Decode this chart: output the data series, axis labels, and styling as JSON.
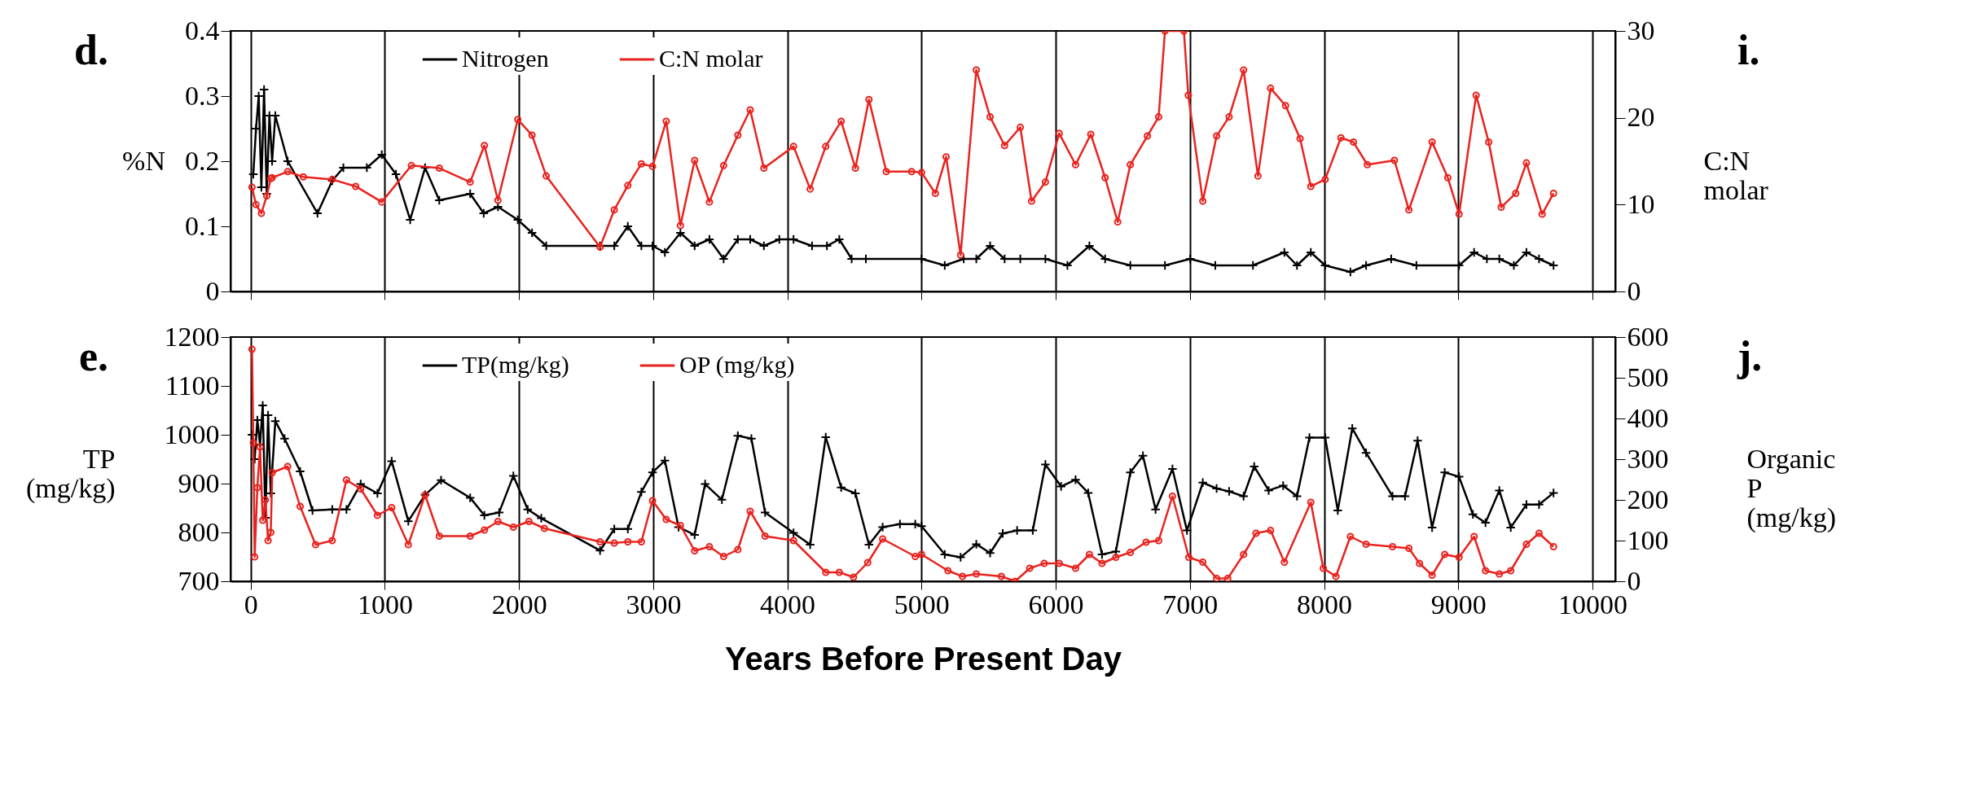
{
  "chart_data": [
    {
      "type": "line",
      "ylabel": "%N",
      "y2label": "C:N molar",
      "xlim": [
        -150,
        10170
      ],
      "xticks": [
        0,
        1000,
        2000,
        3000,
        4000,
        5000,
        6000,
        7000,
        8000,
        9000,
        10000
      ],
      "ylim": [
        0,
        0.4
      ],
      "yticks": [
        0,
        0.1,
        0.2,
        0.3,
        0.4
      ],
      "y2lim": [
        0,
        30
      ],
      "y2ticks": [
        0,
        10,
        20,
        30
      ],
      "grid": "x",
      "legend": "top",
      "tick_labels": "y",
      "annotations": [
        "d.",
        "i."
      ],
      "series": [
        {
          "name": "Nitrogen",
          "color": "#000000",
          "marker": "cross",
          "x": [
            20,
            40,
            60,
            80,
            100,
            120,
            140,
            160,
            184,
            276,
            498,
            608,
            691,
            866,
            977,
            1083,
            1189,
            1300,
            1406,
            1636,
            1737,
            1843,
            1991,
            2097,
            2203,
            2604,
            2710,
            2811,
            2912,
            2995,
            3087,
            3203,
            3309,
            3419,
            3525,
            3631,
            3723,
            3825,
            3940,
            4046,
            4184,
            4295,
            4387,
            4479,
            4585,
            5000,
            5173,
            5314,
            5408,
            5511,
            5619,
            5736,
            5923,
            6087,
            6251,
            6368,
            6556,
            6814,
            7002,
            7189,
            7470,
            7704,
            7798,
            7901,
            8008,
            8196,
            8313,
            8500,
            8688,
            9006,
            9118,
            9213,
            9306,
            9414,
            9508,
            9602,
            9710
          ],
          "values": [
            0.18,
            0.25,
            0.3,
            0.16,
            0.31,
            0.15,
            0.27,
            0.2,
            0.27,
            0.2,
            0.12,
            0.17,
            0.19,
            0.19,
            0.21,
            0.18,
            0.11,
            0.19,
            0.14,
            0.15,
            0.12,
            0.13,
            0.11,
            0.09,
            0.07,
            0.07,
            0.07,
            0.1,
            0.07,
            0.07,
            0.06,
            0.09,
            0.07,
            0.08,
            0.05,
            0.08,
            0.08,
            0.07,
            0.08,
            0.08,
            0.07,
            0.07,
            0.08,
            0.05,
            0.05,
            0.05,
            0.04,
            0.05,
            0.05,
            0.07,
            0.05,
            0.05,
            0.05,
            0.04,
            0.07,
            0.05,
            0.04,
            0.04,
            0.05,
            0.04,
            0.04,
            0.06,
            0.04,
            0.06,
            0.04,
            0.03,
            0.04,
            0.05,
            0.04,
            0.04,
            0.06,
            0.05,
            0.05,
            0.04,
            0.06,
            0.05,
            0.04
          ]
        },
        {
          "name": "C:N molar",
          "color": "#e8231f",
          "marker": "circle",
          "axis": "y2",
          "x": [
            10,
            40,
            80,
            120,
            150,
            160,
            276,
            392,
            608,
            783,
            977,
            1198,
            1406,
            1636,
            1742,
            1843,
            1991,
            2097,
            2203,
            2604,
            2710,
            2811,
            2912,
            2995,
            3097,
            3203,
            3309,
            3419,
            3525,
            3631,
            3723,
            3825,
            4046,
            4170,
            4286,
            4401,
            4507,
            4608,
            4737,
            4926,
            5000,
            5103,
            5183,
            5291,
            5408,
            5511,
            5619,
            5736,
            5820,
            5923,
            6026,
            6148,
            6261,
            6368,
            6462,
            6556,
            6683,
            6767,
            6814,
            6955,
            6988,
            7096,
            7199,
            7292,
            7400,
            7507,
            7601,
            7713,
            7821,
            7901,
            8008,
            8125,
            8219,
            8322,
            8524,
            8632,
            8805,
            8922,
            9006,
            9133,
            9227,
            9320,
            9428,
            9508,
            9625,
            9710
          ],
          "values": [
            12,
            10,
            9,
            11,
            13,
            13.1,
            13.8,
            13.2,
            12.9,
            12.1,
            10.3,
            14.5,
            14.2,
            12.6,
            16.8,
            10.5,
            19.8,
            18,
            13.3,
            5.1,
            9.4,
            12.2,
            14.7,
            14.4,
            19.6,
            7.6,
            15.1,
            10.3,
            14.5,
            18,
            20.9,
            14.2,
            16.7,
            11.8,
            16.7,
            19.6,
            14.2,
            22.1,
            13.8,
            13.8,
            13.7,
            11.3,
            15.5,
            4.2,
            25.5,
            20.1,
            16.8,
            18.9,
            10.4,
            12.6,
            18.2,
            14.6,
            18.1,
            13.1,
            8,
            14.6,
            17.9,
            20.1,
            30,
            30,
            22.6,
            10.4,
            17.9,
            20.1,
            25.5,
            13.3,
            23.4,
            21.4,
            17.6,
            12.1,
            12.9,
            17.7,
            17.2,
            14.6,
            15.1,
            9.4,
            17.2,
            13.1,
            8.9,
            22.6,
            17.2,
            9.7,
            11.3,
            14.8,
            8.9,
            11.3
          ]
        }
      ]
    },
    {
      "type": "line",
      "xlabel": "Years Before Present Day",
      "ylabel": "TP (mg/kg)",
      "y2label": "Organic P (mg/kg)",
      "xlim": [
        -150,
        10170
      ],
      "xticks": [
        0,
        1000,
        2000,
        3000,
        4000,
        5000,
        6000,
        7000,
        8000,
        9000,
        10000
      ],
      "ylim": [
        700,
        1200
      ],
      "yticks": [
        700,
        800,
        900,
        1000,
        1100,
        1200
      ],
      "y2lim": [
        0,
        600
      ],
      "y2ticks": [
        0,
        100,
        200,
        300,
        400,
        500,
        600
      ],
      "grid": "x",
      "legend": "top",
      "annotations": [
        "e.",
        "j."
      ],
      "series": [
        {
          "name": "TP(mg/kg)",
          "color": "#000000",
          "marker": "cross",
          "x": [
            10,
            30,
            50,
            70,
            90,
            110,
            130,
            150,
            184,
            253,
            369,
            461,
            608,
            714,
            820,
            945,
            1051,
            1175,
            1300,
            1419,
            1636,
            1742,
            1852,
            1958,
            2065,
            2166,
            2604,
            2710,
            2811,
            2912,
            2995,
            3087,
            3189,
            3309,
            3387,
            3512,
            3631,
            3732,
            3834,
            4046,
            4170,
            4286,
            4401,
            4507,
            4608,
            4710,
            4839,
            4953,
            5000,
            5173,
            5291,
            5408,
            5511,
            5605,
            5712,
            5829,
            5923,
            6040,
            6148,
            6242,
            6345,
            6448,
            6556,
            6650,
            6744,
            6870,
            6978,
            7096,
            7199,
            7292,
            7400,
            7479,
            7587,
            7695,
            7798,
            7891,
            8008,
            8102,
            8210,
            8313,
            8510,
            8603,
            8697,
            8805,
            8899,
            9006,
            9109,
            9203,
            9306,
            9391,
            9508,
            9602,
            9710
          ],
          "values": [
            1000,
            950,
            1030,
            980,
            1060,
            830,
            1040,
            880,
            1028,
            992,
            925,
            845,
            847,
            847,
            899,
            880,
            946,
            823,
            877,
            907,
            871,
            835,
            841,
            916,
            847,
            829,
            763,
            807,
            807,
            883,
            923,
            947,
            811,
            795,
            899,
            867,
            998,
            992,
            841,
            799,
            775,
            995,
            892,
            880,
            775,
            811,
            817,
            817,
            813,
            755,
            749,
            776,
            758,
            798,
            804,
            804,
            939,
            894,
            908,
            881,
            755,
            761,
            923,
            957,
            847,
            930,
            804,
            902,
            890,
            884,
            874,
            935,
            886,
            896,
            874,
            994,
            994,
            845,
            1013,
            963,
            874,
            874,
            988,
            810,
            923,
            914,
            837,
            820,
            886,
            810,
            857,
            857,
            881
          ]
        },
        {
          "name": "OP (mg/kg)",
          "color": "#e8231f",
          "marker": "circle",
          "axis": "y2",
          "x": [
            10,
            20,
            30,
            50,
            70,
            90,
            110,
            130,
            150,
            161,
            276,
            369,
            484,
            608,
            714,
            820,
            945,
            1051,
            1175,
            1300,
            1406,
            1636,
            1742,
            1843,
            1958,
            2074,
            2189,
            2604,
            2710,
            2811,
            2912,
            2995,
            3097,
            3203,
            3309,
            3419,
            3525,
            3631,
            3723,
            3834,
            4046,
            4286,
            4387,
            4493,
            4599,
            4710,
            4953,
            5000,
            5197,
            5305,
            5408,
            5595,
            5698,
            5806,
            5914,
            6026,
            6148,
            6251,
            6345,
            6448,
            6556,
            6673,
            6767,
            6870,
            6992,
            7096,
            7199,
            7282,
            7400,
            7493,
            7601,
            7704,
            7901,
            7994,
            8088,
            8196,
            8313,
            8510,
            8632,
            8711,
            8805,
            8899,
            9006,
            9118,
            9203,
            9306,
            9391,
            9508,
            9602,
            9710
          ],
          "values": [
            570,
            340,
            60,
            230,
            330,
            150,
            200,
            100,
            120,
            267,
            282,
            184,
            90,
            100,
            249,
            227,
            162,
            181,
            90,
            212,
            111,
            111,
            126,
            147,
            133,
            147,
            130,
            97,
            94,
            97,
            97,
            198,
            152,
            137,
            75,
            85,
            61,
            78,
            172,
            111,
            100,
            22,
            22,
            10,
            46,
            104,
            61,
            66,
            26,
            12,
            18,
            12,
            0,
            32,
            44,
            44,
            32,
            66,
            44,
            59,
            71,
            96,
            100,
            209,
            59,
            47,
            7,
            7,
            66,
            118,
            125,
            47,
            194,
            32,
            12,
            110,
            91,
            85,
            81,
            44,
            15,
            66,
            59,
            110,
            26,
            18,
            26,
            91,
            118,
            85
          ]
        }
      ]
    }
  ]
}
